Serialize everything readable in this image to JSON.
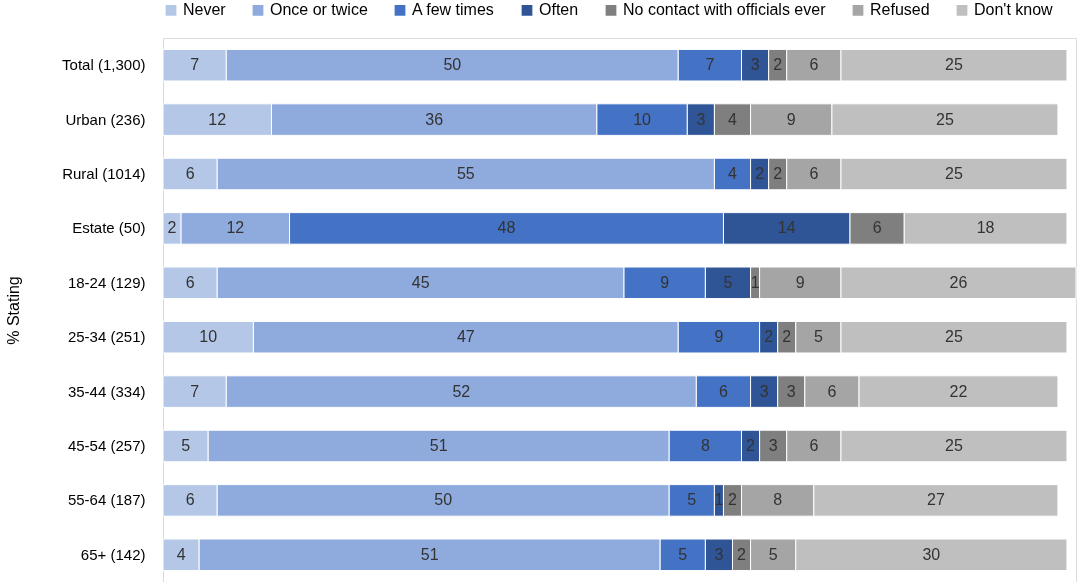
{
  "chart_data": {
    "type": "bar",
    "orientation": "horizontal",
    "stacked": true,
    "data_labels": true,
    "legend": "top",
    "grid": false,
    "ylabel": "% Stating",
    "categories": [
      "Total (1,300)",
      "Urban (236)",
      "Rural (1014)",
      "Estate (50)",
      "18-24 (129)",
      "25-34 (251)",
      "35-44 (334)",
      "45-54 (257)",
      "55-64 (187)",
      "65+ (142)"
    ],
    "series": [
      {
        "name": "Never",
        "color": "#b4c7e7",
        "values": [
          7,
          12,
          6,
          2,
          6,
          10,
          7,
          5,
          6,
          4
        ]
      },
      {
        "name": "Once or twice",
        "color": "#8faadc",
        "values": [
          50,
          36,
          55,
          12,
          45,
          47,
          52,
          51,
          50,
          51
        ]
      },
      {
        "name": "A few times",
        "color": "#4472c4",
        "values": [
          7,
          10,
          4,
          48,
          9,
          9,
          6,
          8,
          5,
          5
        ]
      },
      {
        "name": "Often",
        "color": "#2f5597",
        "values": [
          3,
          3,
          2,
          14,
          5,
          2,
          3,
          2,
          1,
          3
        ]
      },
      {
        "name": "No contact with officials ever",
        "color": "#7f7f7f",
        "values": [
          2,
          4,
          2,
          6,
          1,
          2,
          3,
          3,
          2,
          2
        ]
      },
      {
        "name": "Refused",
        "color": "#a5a5a5",
        "values": [
          6,
          9,
          6,
          null,
          9,
          5,
          6,
          6,
          8,
          5
        ]
      },
      {
        "name": "Don't know",
        "color": "#bfbfbf",
        "values": [
          25,
          25,
          25,
          18,
          26,
          25,
          22,
          25,
          27,
          30
        ]
      }
    ]
  }
}
